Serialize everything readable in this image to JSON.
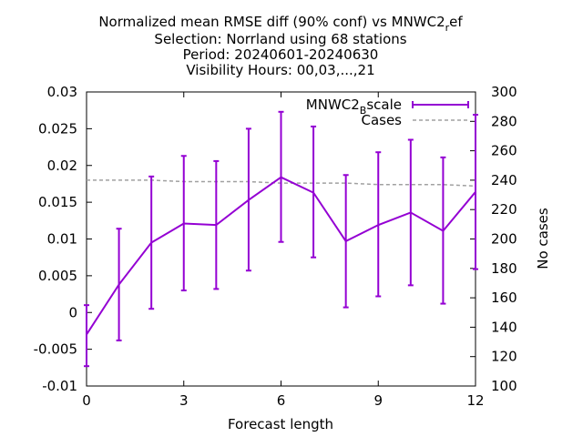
{
  "chart_data": {
    "type": "line",
    "title_lines": [
      {
        "main": "Normalized mean RMSE diff (90% conf) vs MNWC2",
        "sub": "r",
        "after": "ef"
      },
      {
        "main": "Selection: Norrland using    68 stations",
        "sub": "",
        "after": ""
      },
      {
        "main": "Period: 20240601-20240630",
        "sub": "",
        "after": ""
      },
      {
        "main": "Visibility   Hours: 00,03,...,21",
        "sub": "",
        "after": ""
      }
    ],
    "xlabel": "Forecast length",
    "ylabel": "",
    "y2label": "No cases",
    "xlim": [
      0,
      12
    ],
    "ylim": [
      -0.01,
      0.03
    ],
    "y2lim": [
      100,
      300
    ],
    "x_ticks": [
      0,
      3,
      6,
      9,
      12
    ],
    "x_tick_labels": [
      "0",
      "3",
      "6",
      "9",
      "12"
    ],
    "y_ticks": [
      -0.01,
      -0.005,
      0,
      0.005,
      0.01,
      0.015,
      0.02,
      0.025,
      0.03
    ],
    "y_tick_labels": [
      "-0.01",
      "-0.005",
      "0",
      "0.005",
      "0.01",
      "0.015",
      "0.02",
      "0.025",
      "0.03"
    ],
    "y2_ticks": [
      100,
      120,
      140,
      160,
      180,
      200,
      220,
      240,
      260,
      280,
      300
    ],
    "y2_tick_labels": [
      "100",
      "120",
      "140",
      "160",
      "180",
      "200",
      "220",
      "240",
      "260",
      "280",
      "300"
    ],
    "grid": false,
    "legend_position": "top-right",
    "series": [
      {
        "name": "MNWC2",
        "name_sub": "B",
        "name_after": "scale",
        "color": "#9400d3",
        "axis": "y",
        "x": [
          0,
          1,
          2,
          3,
          4,
          5,
          6,
          7,
          8,
          9,
          10,
          11,
          12
        ],
        "values": [
          -0.003,
          0.0038,
          0.0095,
          0.0121,
          0.0119,
          0.0153,
          0.0184,
          0.0163,
          0.0097,
          0.0119,
          0.0136,
          0.0111,
          0.0164
        ],
        "err_low": [
          -0.0073,
          -0.0038,
          0.0005,
          0.003,
          0.0032,
          0.0057,
          0.0096,
          0.0075,
          0.0007,
          0.0022,
          0.0037,
          0.0012,
          0.0059
        ],
        "err_high": [
          0.001,
          0.0114,
          0.0185,
          0.0213,
          0.0206,
          0.025,
          0.0273,
          0.0253,
          0.0187,
          0.0218,
          0.0235,
          0.0211,
          0.0269
        ]
      },
      {
        "name": "Cases",
        "color": "#a0a0a0",
        "axis": "y2",
        "x": [
          0,
          1,
          2,
          3,
          4,
          5,
          6,
          7,
          8,
          9,
          10,
          11,
          12
        ],
        "values": [
          240,
          240,
          240,
          239,
          239,
          239,
          238,
          238,
          238,
          237,
          237,
          237,
          236
        ]
      }
    ]
  }
}
